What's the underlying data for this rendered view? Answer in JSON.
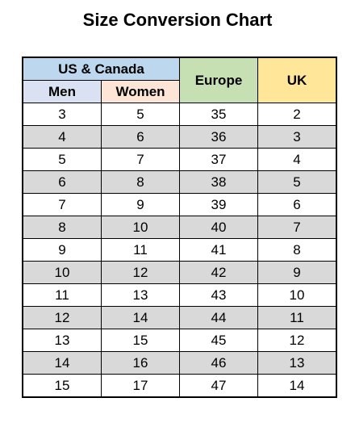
{
  "title": "Size Conversion Chart",
  "colors": {
    "us_canada_header": "#bdd7ee",
    "men_header": "#d9e1f2",
    "women_header": "#fce4d6",
    "europe_header": "#c6e0b4",
    "uk_header": "#ffe699",
    "row_odd": "#ffffff",
    "row_even": "#d9d9d9"
  },
  "table": {
    "headers": {
      "us_canada": "US & Canada",
      "men": "Men",
      "women": "Women",
      "europe": "Europe",
      "uk": "UK"
    },
    "rows": [
      [
        "3",
        "5",
        "35",
        "2"
      ],
      [
        "4",
        "6",
        "36",
        "3"
      ],
      [
        "5",
        "7",
        "37",
        "4"
      ],
      [
        "6",
        "8",
        "38",
        "5"
      ],
      [
        "7",
        "9",
        "39",
        "6"
      ],
      [
        "8",
        "10",
        "40",
        "7"
      ],
      [
        "9",
        "11",
        "41",
        "8"
      ],
      [
        "10",
        "12",
        "42",
        "9"
      ],
      [
        "11",
        "13",
        "43",
        "10"
      ],
      [
        "12",
        "14",
        "44",
        "11"
      ],
      [
        "13",
        "15",
        "45",
        "12"
      ],
      [
        "14",
        "16",
        "46",
        "13"
      ],
      [
        "15",
        "17",
        "47",
        "14"
      ]
    ]
  }
}
